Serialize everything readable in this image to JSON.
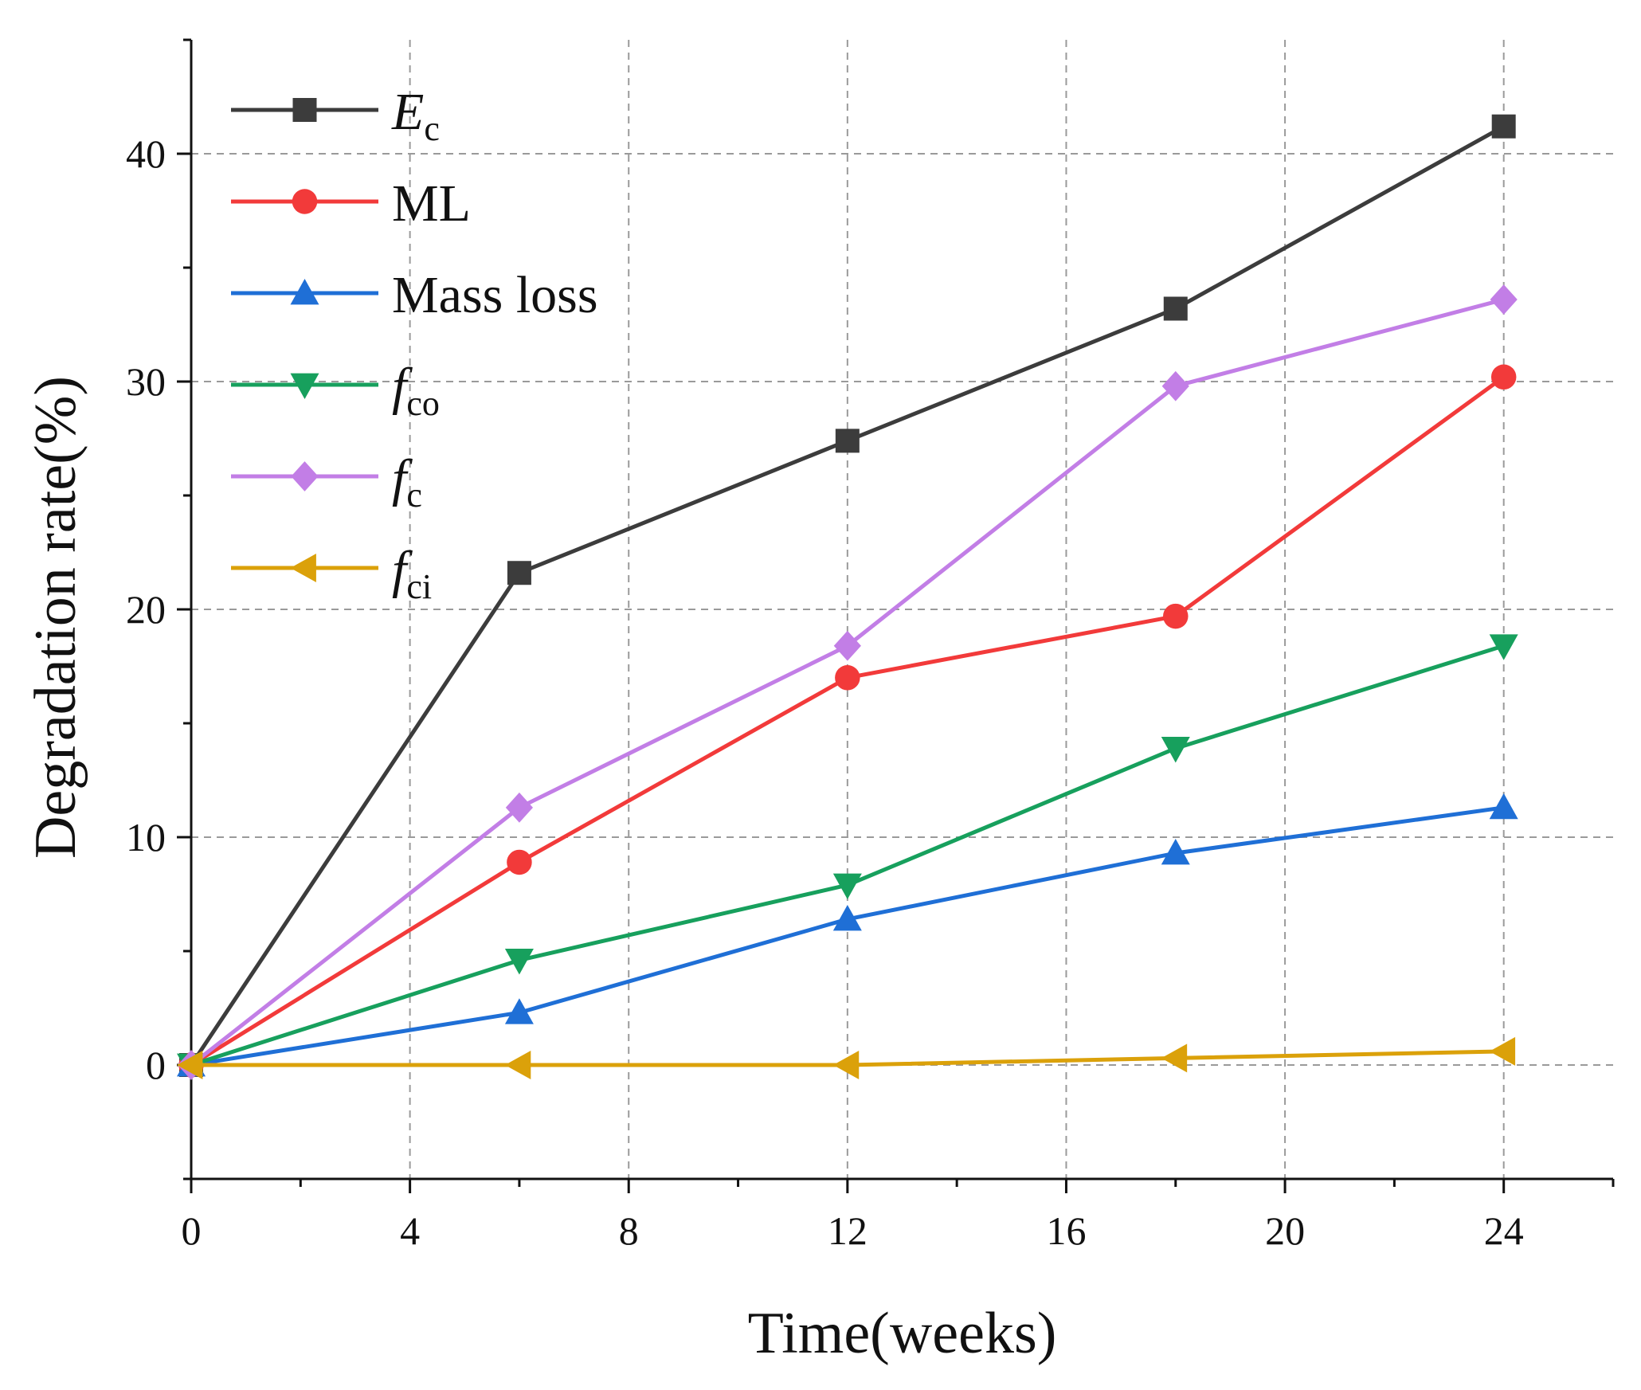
{
  "chart_data": {
    "type": "line",
    "title": "",
    "xlabel": "Time(weeks)",
    "ylabel": "Degradation rate(%)",
    "xlim": [
      0,
      26
    ],
    "ylim": [
      -5,
      45
    ],
    "xticks": [
      0,
      4,
      8,
      12,
      16,
      20,
      24
    ],
    "xtick_labels": [
      "0",
      "4",
      "8",
      "12",
      "16",
      "20",
      "24"
    ],
    "yticks": [
      0,
      10,
      20,
      30,
      40
    ],
    "ytick_labels": [
      "0",
      "10",
      "20",
      "30",
      "40"
    ],
    "grid": true,
    "legend_position": "top-left",
    "x": [
      0,
      6,
      12,
      18,
      24
    ],
    "series": [
      {
        "name": "Ec",
        "label_main": "E",
        "label_sub": "c",
        "italic_main": true,
        "marker": "square",
        "color": "#3c3c3c",
        "values": [
          0,
          21.6,
          27.4,
          33.2,
          41.2
        ]
      },
      {
        "name": "ML",
        "label_main": "ML",
        "label_sub": "",
        "italic_main": false,
        "marker": "circle",
        "color": "#f23a3a",
        "values": [
          0,
          8.9,
          17.0,
          19.7,
          30.2
        ]
      },
      {
        "name": "Mass loss",
        "label_main": "Mass loss",
        "label_sub": "",
        "italic_main": false,
        "marker": "triangle-up",
        "color": "#1f6fd6",
        "values": [
          0,
          2.3,
          6.4,
          9.3,
          11.3
        ]
      },
      {
        "name": "fco",
        "label_main": "f",
        "label_sub": "co",
        "italic_main": true,
        "marker": "triangle-down",
        "color": "#17a05d",
        "values": [
          0,
          4.6,
          7.9,
          13.9,
          18.4
        ]
      },
      {
        "name": "fc",
        "label_main": "f",
        "label_sub": "c",
        "italic_main": true,
        "marker": "diamond",
        "color": "#c27ee6",
        "values": [
          0,
          11.3,
          18.4,
          29.8,
          33.6
        ]
      },
      {
        "name": "fci",
        "label_main": "f",
        "label_sub": "ci",
        "italic_main": true,
        "marker": "triangle-left",
        "color": "#dba10a",
        "values": [
          0,
          0,
          0,
          0.3,
          0.6
        ]
      }
    ]
  }
}
